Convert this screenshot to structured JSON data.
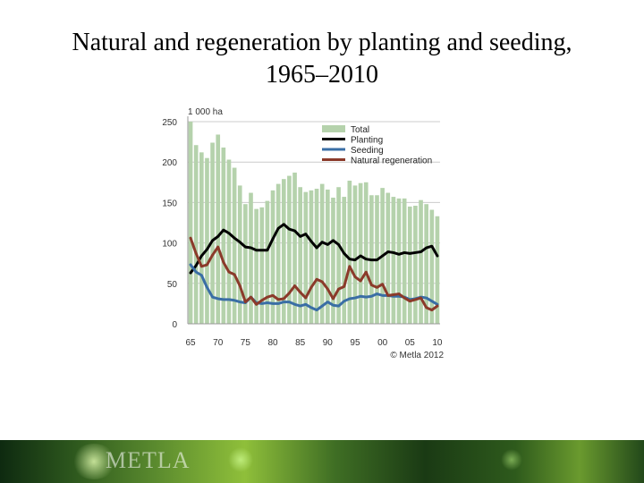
{
  "slide": {
    "title": "Natural and regeneration by planting and seeding, 1965–2010",
    "footer_logo": "METLA"
  },
  "colors": {
    "total": "#b5d2ac",
    "planting": "#000000",
    "seeding": "#3a6ea5",
    "natural": "#8b3a2a",
    "grid": "#cccccc"
  },
  "chart_data": {
    "type": "bar",
    "unit_label": "1 000 ha",
    "copyright": "© Metla 2012",
    "ylim": [
      0,
      250
    ],
    "yticks": [
      0,
      50,
      100,
      150,
      200,
      250
    ],
    "x": [
      1965,
      1966,
      1967,
      1968,
      1969,
      1970,
      1971,
      1972,
      1973,
      1974,
      1975,
      1976,
      1977,
      1978,
      1979,
      1980,
      1981,
      1982,
      1983,
      1984,
      1985,
      1986,
      1987,
      1988,
      1989,
      1990,
      1991,
      1992,
      1993,
      1994,
      1995,
      1996,
      1997,
      1998,
      1999,
      2000,
      2001,
      2002,
      2003,
      2004,
      2005,
      2006,
      2007,
      2008,
      2009,
      2010
    ],
    "xtick_labels": [
      {
        "year": 1965,
        "label": "65"
      },
      {
        "year": 1970,
        "label": "70"
      },
      {
        "year": 1975,
        "label": "75"
      },
      {
        "year": 1980,
        "label": "80"
      },
      {
        "year": 1985,
        "label": "85"
      },
      {
        "year": 1990,
        "label": "90"
      },
      {
        "year": 1995,
        "label": "95"
      },
      {
        "year": 2000,
        "label": "00"
      },
      {
        "year": 2005,
        "label": "05"
      },
      {
        "year": 2010,
        "label": "10"
      }
    ],
    "legend": [
      "Total",
      "Planting",
      "Seeding",
      "Natural regeneration"
    ],
    "series": [
      {
        "name": "Total",
        "kind": "bar",
        "values": [
          250,
          221,
          212,
          205,
          224,
          234,
          218,
          203,
          193,
          171,
          148,
          162,
          142,
          144,
          152,
          165,
          173,
          179,
          183,
          187,
          169,
          163,
          165,
          167,
          173,
          166,
          156,
          169,
          157,
          177,
          171,
          174,
          175,
          159,
          159,
          168,
          162,
          157,
          155,
          155,
          145,
          146,
          153,
          148,
          141,
          133
        ]
      },
      {
        "name": "Planting",
        "kind": "line",
        "values": [
          63,
          72,
          84,
          92,
          103,
          108,
          116,
          112,
          106,
          101,
          95,
          94,
          91,
          91,
          91,
          105,
          118,
          123,
          117,
          115,
          108,
          111,
          102,
          94,
          101,
          98,
          103,
          98,
          87,
          80,
          79,
          84,
          80,
          79,
          79,
          84,
          89,
          88,
          86,
          88,
          87,
          88,
          89,
          94,
          96,
          84
        ]
      },
      {
        "name": "Seeding",
        "kind": "line",
        "values": [
          73,
          64,
          60,
          45,
          33,
          31,
          30,
          30,
          29,
          27,
          26,
          33,
          26,
          25,
          26,
          25,
          25,
          27,
          27,
          24,
          22,
          24,
          20,
          17,
          22,
          27,
          23,
          22,
          28,
          31,
          32,
          34,
          33,
          34,
          37,
          35,
          35,
          34,
          34,
          33,
          30,
          31,
          33,
          32,
          28,
          24
        ]
      },
      {
        "name": "Natural regeneration",
        "kind": "line",
        "values": [
          106,
          87,
          71,
          73,
          85,
          95,
          76,
          64,
          61,
          47,
          27,
          33,
          24,
          29,
          33,
          35,
          30,
          31,
          38,
          47,
          39,
          32,
          45,
          55,
          52,
          43,
          31,
          43,
          46,
          71,
          58,
          53,
          64,
          48,
          45,
          49,
          35,
          36,
          37,
          32,
          28,
          30,
          32,
          20,
          17,
          22
        ]
      }
    ]
  }
}
